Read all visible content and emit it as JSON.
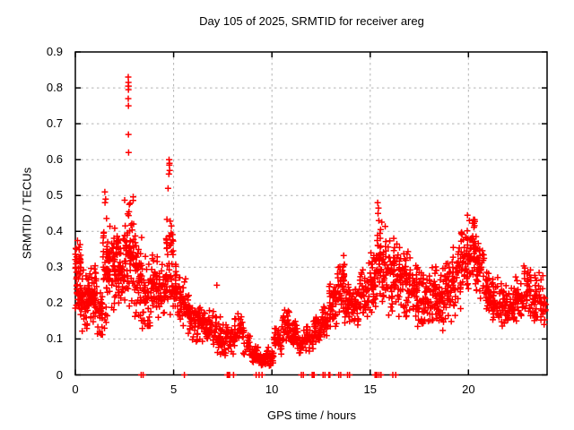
{
  "chart_data": {
    "type": "scatter",
    "title": "Day 105 of 2025, SRMTID for receiver areg",
    "xlabel": "GPS time / hours",
    "ylabel": "SRMTID / TECUs",
    "xlim": [
      0,
      24
    ],
    "ylim": [
      0,
      0.9
    ],
    "x_ticks": [
      0,
      5,
      10,
      15,
      20
    ],
    "y_ticks": [
      0,
      0.1,
      0.2,
      0.3,
      0.4,
      0.5,
      0.6,
      0.7,
      0.8,
      0.9
    ],
    "grid": "dashed-gray",
    "legend": "none",
    "marker": "plus",
    "marker_color": "#ff0000",
    "grid_color": "#b3b3b3",
    "axis_color": "#000000",
    "seed": 12345,
    "bins_format": [
      "t_start_h",
      "t_end_h",
      "n_points",
      "y_min_TECU",
      "y_max_TECU"
    ],
    "bins": [
      [
        0.0,
        0.3,
        55,
        0.15,
        0.38
      ],
      [
        0.3,
        0.7,
        50,
        0.11,
        0.3
      ],
      [
        0.7,
        1.1,
        50,
        0.12,
        0.33
      ],
      [
        1.1,
        1.4,
        28,
        0.08,
        0.26
      ],
      [
        1.4,
        1.7,
        45,
        0.12,
        0.46
      ],
      [
        1.7,
        2.1,
        52,
        0.16,
        0.44
      ],
      [
        2.1,
        2.5,
        48,
        0.18,
        0.4
      ],
      [
        2.5,
        3.0,
        70,
        0.18,
        0.5
      ],
      [
        3.0,
        3.4,
        55,
        0.14,
        0.43
      ],
      [
        3.4,
        3.8,
        40,
        0.1,
        0.34
      ],
      [
        3.8,
        4.2,
        42,
        0.12,
        0.36
      ],
      [
        4.2,
        4.6,
        40,
        0.14,
        0.33
      ],
      [
        4.6,
        5.0,
        52,
        0.15,
        0.44
      ],
      [
        5.0,
        5.4,
        40,
        0.13,
        0.33
      ],
      [
        5.4,
        5.8,
        35,
        0.1,
        0.28
      ],
      [
        5.8,
        6.2,
        35,
        0.09,
        0.22
      ],
      [
        6.2,
        6.6,
        32,
        0.08,
        0.2
      ],
      [
        6.6,
        7.0,
        30,
        0.06,
        0.19
      ],
      [
        7.0,
        7.4,
        30,
        0.04,
        0.18
      ],
      [
        7.4,
        7.8,
        30,
        0.04,
        0.15
      ],
      [
        7.8,
        8.1,
        24,
        0.05,
        0.13
      ],
      [
        8.1,
        8.5,
        30,
        0.09,
        0.18
      ],
      [
        8.5,
        8.9,
        26,
        0.05,
        0.14
      ],
      [
        8.9,
        9.3,
        30,
        0.02,
        0.09
      ],
      [
        9.3,
        9.7,
        34,
        0.02,
        0.06
      ],
      [
        9.7,
        10.1,
        34,
        0.02,
        0.08
      ],
      [
        10.1,
        10.5,
        35,
        0.05,
        0.14
      ],
      [
        10.5,
        10.9,
        40,
        0.08,
        0.19
      ],
      [
        10.9,
        11.3,
        35,
        0.07,
        0.16
      ],
      [
        11.3,
        11.7,
        30,
        0.05,
        0.13
      ],
      [
        11.7,
        12.1,
        30,
        0.06,
        0.14
      ],
      [
        12.1,
        12.5,
        34,
        0.08,
        0.18
      ],
      [
        12.5,
        12.9,
        36,
        0.1,
        0.2
      ],
      [
        12.9,
        13.3,
        40,
        0.12,
        0.27
      ],
      [
        13.3,
        13.7,
        40,
        0.13,
        0.37
      ],
      [
        13.7,
        14.1,
        36,
        0.13,
        0.26
      ],
      [
        14.1,
        14.5,
        36,
        0.13,
        0.28
      ],
      [
        14.5,
        14.9,
        36,
        0.15,
        0.3
      ],
      [
        14.9,
        15.3,
        40,
        0.17,
        0.35
      ],
      [
        15.3,
        15.6,
        36,
        0.2,
        0.44
      ],
      [
        15.6,
        16.0,
        40,
        0.15,
        0.42
      ],
      [
        16.0,
        16.4,
        42,
        0.14,
        0.4
      ],
      [
        16.4,
        16.8,
        40,
        0.15,
        0.38
      ],
      [
        16.8,
        17.2,
        40,
        0.13,
        0.36
      ],
      [
        17.2,
        17.6,
        40,
        0.12,
        0.33
      ],
      [
        17.6,
        18.0,
        40,
        0.1,
        0.3
      ],
      [
        18.0,
        18.4,
        40,
        0.12,
        0.33
      ],
      [
        18.4,
        18.8,
        40,
        0.1,
        0.3
      ],
      [
        18.8,
        19.2,
        40,
        0.14,
        0.33
      ],
      [
        19.2,
        19.6,
        40,
        0.16,
        0.37
      ],
      [
        19.6,
        20.0,
        42,
        0.2,
        0.43
      ],
      [
        20.0,
        20.4,
        45,
        0.24,
        0.45
      ],
      [
        20.4,
        20.8,
        40,
        0.2,
        0.38
      ],
      [
        20.8,
        21.2,
        40,
        0.15,
        0.31
      ],
      [
        21.2,
        21.6,
        36,
        0.14,
        0.28
      ],
      [
        21.6,
        22.0,
        36,
        0.13,
        0.26
      ],
      [
        22.0,
        22.4,
        36,
        0.12,
        0.25
      ],
      [
        22.4,
        22.8,
        36,
        0.14,
        0.28
      ],
      [
        22.8,
        23.2,
        36,
        0.15,
        0.33
      ],
      [
        23.2,
        23.6,
        32,
        0.13,
        0.3
      ],
      [
        23.6,
        23.95,
        26,
        0.13,
        0.28
      ]
    ],
    "outliers": [
      [
        1.5,
        0.51
      ],
      [
        1.54,
        0.49
      ],
      [
        1.51,
        0.48
      ],
      [
        2.69,
        0.83
      ],
      [
        2.7,
        0.815
      ],
      [
        2.69,
        0.805
      ],
      [
        2.71,
        0.805
      ],
      [
        2.7,
        0.795
      ],
      [
        2.69,
        0.77
      ],
      [
        2.7,
        0.75
      ],
      [
        2.7,
        0.67
      ],
      [
        2.71,
        0.62
      ],
      [
        4.72,
        0.52
      ],
      [
        4.76,
        0.56
      ],
      [
        4.77,
        0.6
      ],
      [
        4.78,
        0.585
      ],
      [
        4.79,
        0.59
      ],
      [
        4.8,
        0.57
      ],
      [
        7.2,
        0.25
      ],
      [
        15.38,
        0.48
      ],
      [
        15.42,
        0.465
      ],
      [
        15.4,
        0.45
      ],
      [
        15.44,
        0.43
      ],
      [
        19.95,
        0.445
      ],
      [
        20.05,
        0.43
      ]
    ],
    "zero_value_times": [
      3.35,
      3.45,
      5.55,
      7.73,
      7.76,
      7.79,
      7.82,
      7.85,
      8.05,
      9.2,
      9.35,
      9.5,
      11.5,
      11.6,
      12.05,
      12.1,
      12.15,
      12.6,
      12.7,
      12.9,
      12.95,
      13.4,
      13.5,
      13.85,
      13.95,
      15.25,
      15.3,
      15.35,
      15.45,
      15.55,
      16.15,
      16.3
    ]
  }
}
